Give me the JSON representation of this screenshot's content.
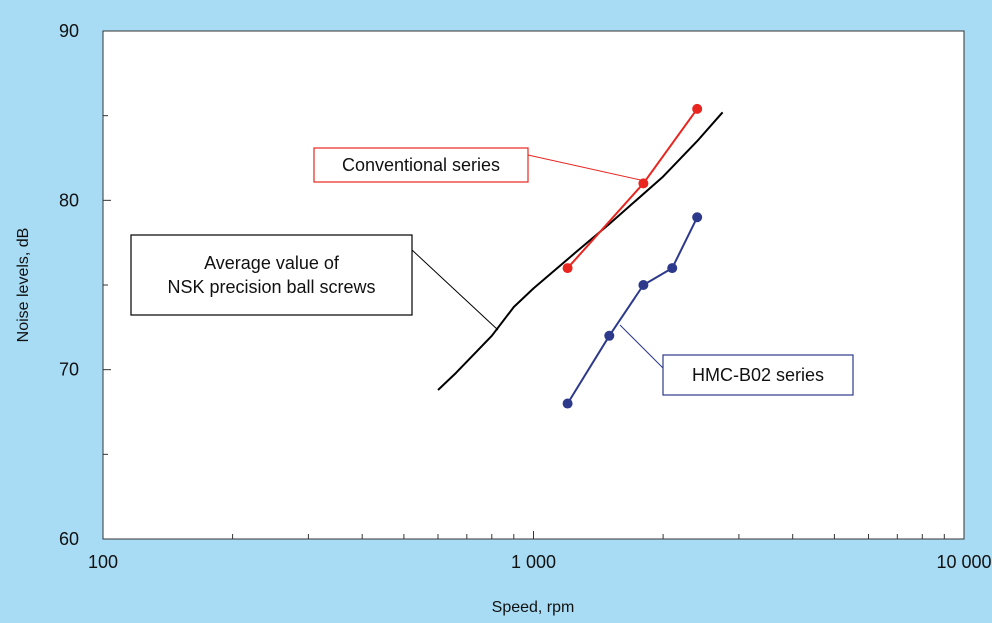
{
  "chart_data": {
    "type": "line",
    "xlabel": "Speed, rpm",
    "ylabel": "Noise levels, dB",
    "x_scale": "log",
    "xlim": [
      100,
      10000
    ],
    "ylim": [
      60,
      90
    ],
    "x_ticks": [
      {
        "value": 100,
        "label": "100"
      },
      {
        "value": 1000,
        "label": "1 000"
      },
      {
        "value": 10000,
        "label": "10 000"
      }
    ],
    "x_minor_ticks": [
      200,
      300,
      400,
      500,
      600,
      700,
      800,
      900,
      2000,
      3000,
      4000,
      5000,
      6000,
      7000,
      8000,
      9000
    ],
    "y_ticks": [
      {
        "value": 60,
        "label": "60"
      },
      {
        "value": 70,
        "label": "70"
      },
      {
        "value": 80,
        "label": "80"
      },
      {
        "value": 90,
        "label": "90"
      }
    ],
    "y_minor_ticks": [
      65,
      75,
      85
    ],
    "grid": false,
    "series": [
      {
        "name": "Average value of NSK precision ball screws",
        "color": "#000000",
        "markers": false,
        "points": [
          {
            "x": 600,
            "y": 68.8
          },
          {
            "x": 660,
            "y": 69.8
          },
          {
            "x": 800,
            "y": 72
          },
          {
            "x": 900,
            "y": 73.7
          },
          {
            "x": 1000,
            "y": 74.8
          },
          {
            "x": 1250,
            "y": 76.9
          },
          {
            "x": 1500,
            "y": 78.6
          },
          {
            "x": 2000,
            "y": 81.4
          },
          {
            "x": 2400,
            "y": 83.5
          },
          {
            "x": 2750,
            "y": 85.2
          }
        ]
      },
      {
        "name": "Conventional series",
        "color": "#e8251f",
        "markers": true,
        "points": [
          {
            "x": 1200,
            "y": 76
          },
          {
            "x": 1800,
            "y": 81
          },
          {
            "x": 2400,
            "y": 85.4
          }
        ]
      },
      {
        "name": "HMC-B02 series",
        "color": "#2d3a8c",
        "markers": true,
        "points": [
          {
            "x": 1200,
            "y": 68
          },
          {
            "x": 1500,
            "y": 72
          },
          {
            "x": 1800,
            "y": 75
          },
          {
            "x": 2100,
            "y": 76
          },
          {
            "x": 2400,
            "y": 79
          }
        ]
      }
    ],
    "annotations": [
      {
        "lines": [
          "Conventional series"
        ],
        "color": "#e8251f"
      },
      {
        "lines": [
          "Average value of",
          "NSK precision ball screws"
        ],
        "color": "#000000"
      },
      {
        "lines": [
          "HMC-B02 series"
        ],
        "color": "#2d3a8c"
      }
    ]
  }
}
